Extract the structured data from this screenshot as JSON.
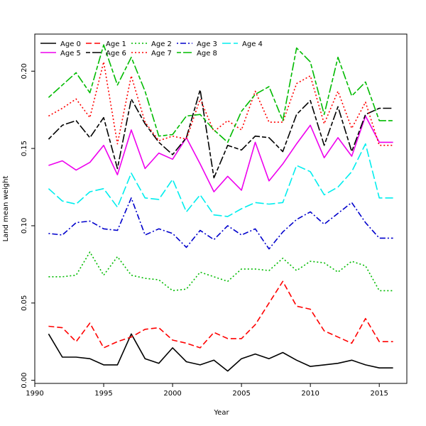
{
  "chart_data": {
    "type": "line",
    "title": "",
    "xlabel": "Year",
    "ylabel": "Land mean weight",
    "xlim": [
      1990,
      2017
    ],
    "ylim": [
      -0.002,
      0.224
    ],
    "x_ticks": [
      1990,
      1995,
      2000,
      2005,
      2010,
      2015
    ],
    "y_ticks": [
      0.0,
      0.05,
      0.1,
      0.15,
      0.2
    ],
    "y_tick_labels": [
      "0.00",
      "0.05",
      "0.10",
      "0.15",
      "0.20"
    ],
    "grid": false,
    "legend_position": "top-left",
    "x": [
      1991,
      1992,
      1993,
      1994,
      1995,
      1996,
      1997,
      1998,
      1999,
      2000,
      2001,
      2002,
      2003,
      2004,
      2005,
      2006,
      2007,
      2008,
      2009,
      2010,
      2011,
      2012,
      2013,
      2014,
      2015,
      2016
    ],
    "series": [
      {
        "name": "Age 0",
        "color": "#000000",
        "dash": "solid",
        "values": [
          0.03,
          0.015,
          0.015,
          0.014,
          0.01,
          0.01,
          0.03,
          0.014,
          0.011,
          0.021,
          0.012,
          0.01,
          0.013,
          0.006,
          0.014,
          0.017,
          0.014,
          0.018,
          0.013,
          0.009,
          0.01,
          0.011,
          0.013,
          0.01,
          0.008,
          0.008
        ]
      },
      {
        "name": "Age 1",
        "color": "#ff0000",
        "dash": "dashed",
        "values": [
          0.035,
          0.034,
          0.025,
          0.037,
          0.021,
          0.025,
          0.028,
          0.033,
          0.034,
          0.026,
          0.024,
          0.021,
          0.031,
          0.027,
          0.027,
          0.036,
          0.05,
          0.064,
          0.048,
          0.046,
          0.032,
          0.028,
          0.024,
          0.04,
          0.025,
          0.025
        ]
      },
      {
        "name": "Age 2",
        "color": "#00bb00",
        "dash": "dotted",
        "values": [
          0.067,
          0.067,
          0.068,
          0.083,
          0.068,
          0.08,
          0.068,
          0.066,
          0.065,
          0.058,
          0.059,
          0.07,
          0.067,
          0.064,
          0.072,
          0.072,
          0.071,
          0.079,
          0.071,
          0.077,
          0.076,
          0.07,
          0.077,
          0.074,
          0.058,
          0.058
        ]
      },
      {
        "name": "Age 3",
        "color": "#0000cc",
        "dash": "dotdash",
        "values": [
          0.095,
          0.094,
          0.102,
          0.103,
          0.098,
          0.097,
          0.118,
          0.094,
          0.098,
          0.095,
          0.086,
          0.097,
          0.091,
          0.1,
          0.094,
          0.098,
          0.085,
          0.096,
          0.104,
          0.109,
          0.101,
          0.108,
          0.115,
          0.102,
          0.092,
          0.092
        ]
      },
      {
        "name": "Age 4",
        "color": "#00eeee",
        "dash": "longdash",
        "values": [
          0.124,
          0.116,
          0.114,
          0.122,
          0.124,
          0.112,
          0.134,
          0.118,
          0.117,
          0.13,
          0.109,
          0.12,
          0.107,
          0.106,
          0.111,
          0.115,
          0.114,
          0.115,
          0.139,
          0.135,
          0.12,
          0.125,
          0.135,
          0.153,
          0.118,
          0.118
        ]
      },
      {
        "name": "Age 5",
        "color": "#ee00ee",
        "dash": "solid",
        "values": [
          0.139,
          0.142,
          0.136,
          0.141,
          0.152,
          0.133,
          0.162,
          0.137,
          0.147,
          0.143,
          0.157,
          0.14,
          0.122,
          0.132,
          0.123,
          0.154,
          0.129,
          0.14,
          0.153,
          0.165,
          0.144,
          0.157,
          0.145,
          0.171,
          0.154,
          0.154
        ]
      },
      {
        "name": "Age 6",
        "color": "#000000",
        "dash": "twodash",
        "values": [
          0.156,
          0.165,
          0.168,
          0.157,
          0.17,
          0.137,
          0.182,
          0.166,
          0.154,
          0.146,
          0.157,
          0.188,
          0.131,
          0.152,
          0.149,
          0.158,
          0.157,
          0.148,
          0.172,
          0.181,
          0.152,
          0.177,
          0.148,
          0.172,
          0.176,
          0.176
        ]
      },
      {
        "name": "Age 7",
        "color": "#ff0000",
        "dash": "dotted",
        "values": [
          0.171,
          0.176,
          0.182,
          0.17,
          0.206,
          0.153,
          0.197,
          0.167,
          0.155,
          0.158,
          0.156,
          0.182,
          0.161,
          0.168,
          0.162,
          0.187,
          0.167,
          0.167,
          0.192,
          0.197,
          0.166,
          0.187,
          0.163,
          0.18,
          0.152,
          0.152
        ]
      },
      {
        "name": "Age 8",
        "color": "#00bb00",
        "dash": "twodash",
        "values": [
          0.183,
          0.191,
          0.199,
          0.186,
          0.217,
          0.191,
          0.209,
          0.187,
          0.158,
          0.159,
          0.171,
          0.172,
          0.162,
          0.154,
          0.174,
          0.185,
          0.19,
          0.168,
          0.215,
          0.206,
          0.172,
          0.209,
          0.184,
          0.193,
          0.168,
          0.168
        ]
      }
    ]
  }
}
